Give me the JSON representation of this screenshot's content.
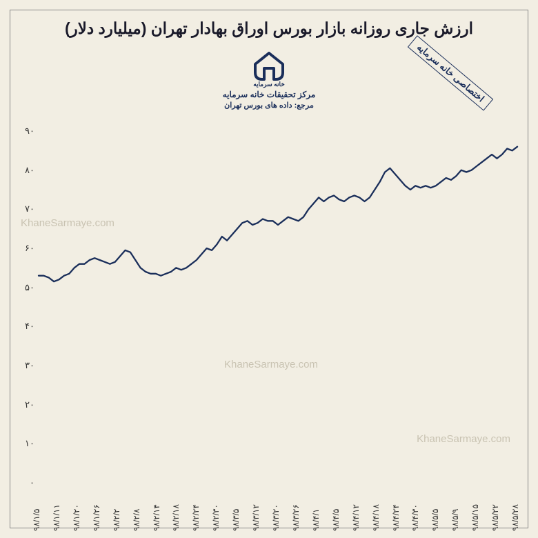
{
  "title": "ارزش جاری روزانه بازار بورس اوراق بهادار تهران (میلیارد دلار)",
  "logo": {
    "brand": "خانه سرمایه",
    "center": "مرکز تحقیقات خانه سرمایه",
    "source": "مرجع: داده های بورس تهران"
  },
  "stamp": "اختصاصی خانه سرمایه",
  "watermark": "KhaneSarmaye.com",
  "chart": {
    "type": "line",
    "ylim": [
      0,
      90
    ],
    "ytick_step": 10,
    "xlabels": [
      "۹۸/۱/۵",
      "۹۸/۱/۱۱",
      "۹۸/۱/۲۰",
      "۹۸/۱/۲۶",
      "۹۸/۲/۲",
      "۹۸/۲/۸",
      "۹۸/۲/۱۴",
      "۹۸/۲/۱۸",
      "۹۸/۲/۲۴",
      "۹۸/۲/۳۰",
      "۹۸/۳/۵",
      "۹۸/۳/۱۲",
      "۹۸/۳/۲۰",
      "۹۸/۳/۲۶",
      "۹۸/۴/۱",
      "۹۸/۴/۵",
      "۹۸/۴/۱۲",
      "۹۸/۴/۱۸",
      "۹۸/۴/۲۴",
      "۹۸/۴/۳۰",
      "۹۸/۵/۵",
      "۹۸/۵/۹",
      "۹۸/۵/۱۵",
      "۹۸/۵/۲۲",
      "۹۸/۵/۲۸"
    ],
    "values": [
      53,
      53,
      52.5,
      51.5,
      52,
      53,
      53.5,
      55,
      56,
      56,
      57,
      57.5,
      57,
      56.5,
      56,
      56.5,
      58,
      59.5,
      59,
      57,
      55,
      54,
      53.5,
      53.5,
      53,
      53.5,
      54,
      55,
      54.5,
      55,
      56,
      57,
      58.5,
      60,
      59.5,
      61,
      63,
      62,
      63.5,
      65,
      66.5,
      67,
      66,
      66.5,
      67.5,
      67,
      67,
      66,
      67,
      68,
      67.5,
      67,
      68,
      70,
      71.5,
      73,
      72,
      73,
      73.5,
      72.5,
      72,
      73,
      73.5,
      73,
      72,
      73,
      75,
      77,
      79.5,
      80.5,
      79,
      77.5,
      76,
      75,
      76,
      75.5,
      76,
      75.5,
      76,
      77,
      78,
      77.5,
      78.5,
      80,
      79.5,
      80,
      81,
      82,
      83,
      84,
      83,
      84,
      85.5,
      85,
      86
    ],
    "line_color": "#1a2e5a",
    "line_width": 2.3,
    "background_color": "#f2eee3",
    "tick_color": "#333333",
    "title_fontsize": 23,
    "tick_fontsize": 13,
    "xtick_fontsize": 12
  },
  "y_tick_labels": [
    "۰",
    "۱۰",
    "۲۰",
    "۳۰",
    "۴۰",
    "۵۰",
    "۶۰",
    "۷۰",
    "۸۰",
    "۹۰"
  ]
}
